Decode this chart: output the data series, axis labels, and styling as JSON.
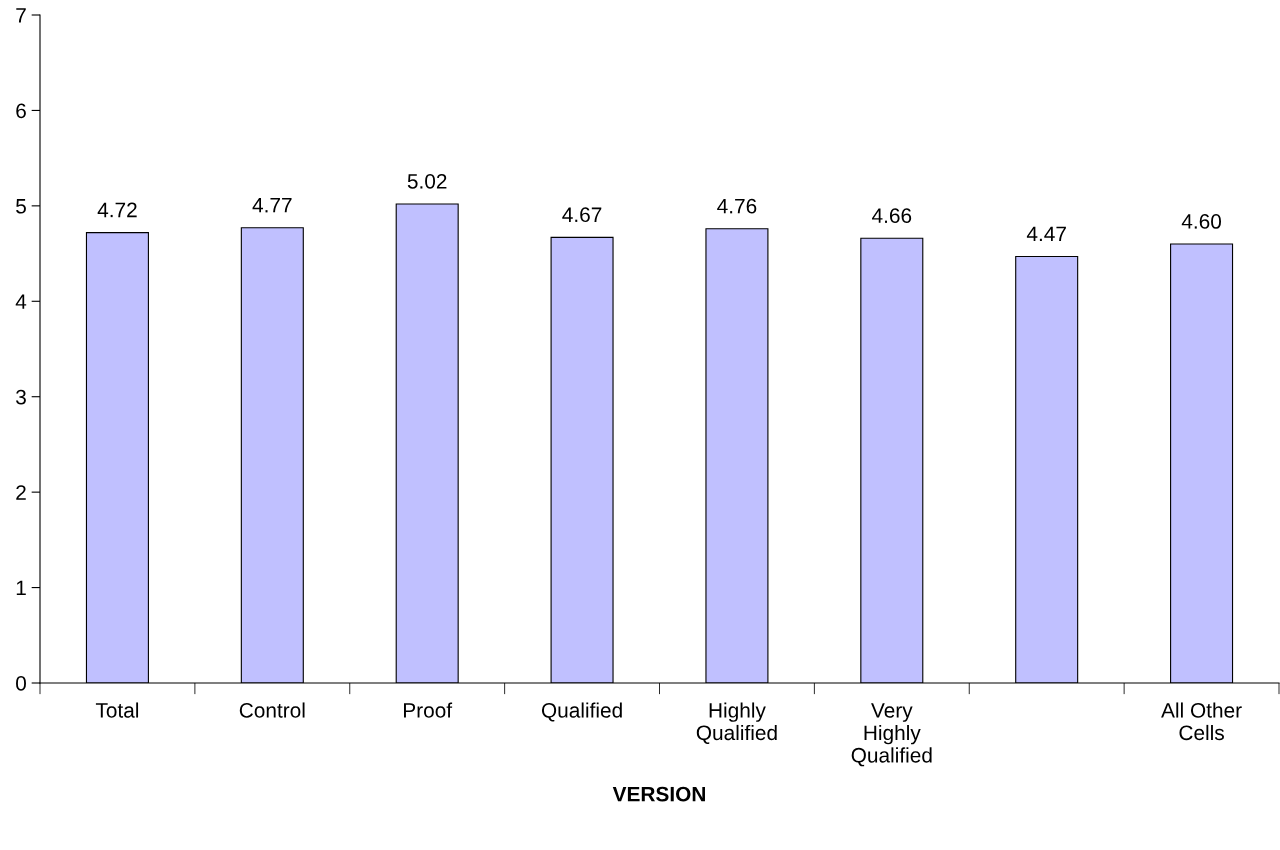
{
  "chart_data": {
    "type": "bar",
    "xlabel": "VERSION",
    "categories": [
      "Total",
      "Control",
      "Proof",
      "Qualified",
      "Highly\nQualified",
      "Very\nHighly\nQualified",
      null,
      "All Other\nCells"
    ],
    "values": [
      4.72,
      4.77,
      5.02,
      4.67,
      4.76,
      4.66,
      4.47,
      4.6
    ],
    "value_labels": [
      "4.72",
      "4.77",
      "5.02",
      "4.67",
      "4.76",
      "4.66",
      "4.47",
      "4.60"
    ],
    "color": "#c0c0ff",
    "ylim": [
      0,
      7
    ],
    "yticks": [
      0,
      1,
      2,
      3,
      4,
      5,
      6,
      7
    ],
    "grid": false
  }
}
